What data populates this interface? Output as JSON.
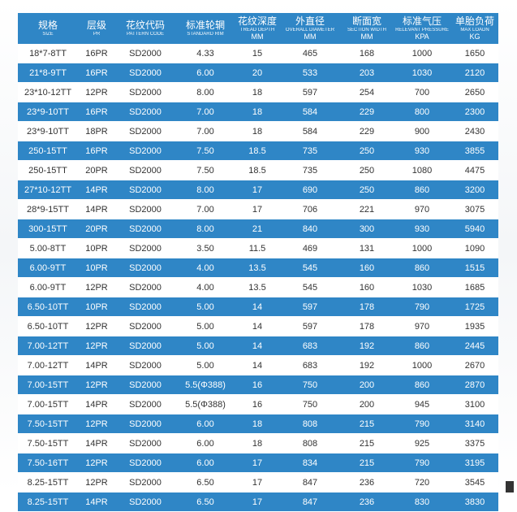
{
  "headers": [
    {
      "cn": "规格",
      "en": "SIZE",
      "unit": ""
    },
    {
      "cn": "层级",
      "en": "PR",
      "unit": ""
    },
    {
      "cn": "花纹代码",
      "en": "PATTERN CODE",
      "unit": ""
    },
    {
      "cn": "标准轮辋",
      "en": "STANDARD RIM",
      "unit": ""
    },
    {
      "cn": "花纹深度",
      "en": "TREAD DEPTH",
      "unit": "MM"
    },
    {
      "cn": "外直径",
      "en": "OVERALL DIAMETER",
      "unit": "MM"
    },
    {
      "cn": "断面宽",
      "en": "SECTION WIDTH",
      "unit": "MM"
    },
    {
      "cn": "标准气压",
      "en": "RELEVANT PRESSURE",
      "unit": "KPA"
    },
    {
      "cn": "单胎负荷",
      "en": "MAX LOADN",
      "unit": "KG"
    }
  ],
  "rows": [
    [
      "18*7-8TT",
      "16PR",
      "SD2000",
      "4.33",
      "15",
      "465",
      "168",
      "1000",
      "1650"
    ],
    [
      "21*8-9TT",
      "16PR",
      "SD2000",
      "6.00",
      "20",
      "533",
      "203",
      "1030",
      "2120"
    ],
    [
      "23*10-12TT",
      "12PR",
      "SD2000",
      "8.00",
      "18",
      "597",
      "254",
      "700",
      "2650"
    ],
    [
      "23*9-10TT",
      "16PR",
      "SD2000",
      "7.00",
      "18",
      "584",
      "229",
      "800",
      "2300"
    ],
    [
      "23*9-10TT",
      "18PR",
      "SD2000",
      "7.00",
      "18",
      "584",
      "229",
      "900",
      "2430"
    ],
    [
      "250-15TT",
      "16PR",
      "SD2000",
      "7.50",
      "18.5",
      "735",
      "250",
      "930",
      "3855"
    ],
    [
      "250-15TT",
      "20PR",
      "SD2000",
      "7.50",
      "18.5",
      "735",
      "250",
      "1080",
      "4475"
    ],
    [
      "27*10-12TT",
      "14PR",
      "SD2000",
      "8.00",
      "17",
      "690",
      "250",
      "860",
      "3200"
    ],
    [
      "28*9-15TT",
      "14PR",
      "SD2000",
      "7.00",
      "17",
      "706",
      "221",
      "970",
      "3075"
    ],
    [
      "300-15TT",
      "20PR",
      "SD2000",
      "8.00",
      "21",
      "840",
      "300",
      "930",
      "5940"
    ],
    [
      "5.00-8TT",
      "10PR",
      "SD2000",
      "3.50",
      "11.5",
      "469",
      "131",
      "1000",
      "1090"
    ],
    [
      "6.00-9TT",
      "10PR",
      "SD2000",
      "4.00",
      "13.5",
      "545",
      "160",
      "860",
      "1515"
    ],
    [
      "6.00-9TT",
      "12PR",
      "SD2000",
      "4.00",
      "13.5",
      "545",
      "160",
      "1030",
      "1685"
    ],
    [
      "6.50-10TT",
      "10PR",
      "SD2000",
      "5.00",
      "14",
      "597",
      "178",
      "790",
      "1725"
    ],
    [
      "6.50-10TT",
      "12PR",
      "SD2000",
      "5.00",
      "14",
      "597",
      "178",
      "970",
      "1935"
    ],
    [
      "7.00-12TT",
      "12PR",
      "SD2000",
      "5.00",
      "14",
      "683",
      "192",
      "860",
      "2445"
    ],
    [
      "7.00-12TT",
      "14PR",
      "SD2000",
      "5.00",
      "14",
      "683",
      "192",
      "1000",
      "2670"
    ],
    [
      "7.00-15TT",
      "12PR",
      "SD2000",
      "5.5(Φ388)",
      "16",
      "750",
      "200",
      "860",
      "2870"
    ],
    [
      "7.00-15TT",
      "14PR",
      "SD2000",
      "5.5(Φ388)",
      "16",
      "750",
      "200",
      "945",
      "3100"
    ],
    [
      "7.50-15TT",
      "12PR",
      "SD2000",
      "6.00",
      "18",
      "808",
      "215",
      "790",
      "3140"
    ],
    [
      "7.50-15TT",
      "14PR",
      "SD2000",
      "6.00",
      "18",
      "808",
      "215",
      "925",
      "3375"
    ],
    [
      "7.50-16TT",
      "12PR",
      "SD2000",
      "6.00",
      "17",
      "834",
      "215",
      "790",
      "3195"
    ],
    [
      "8.25-15TT",
      "12PR",
      "SD2000",
      "6.50",
      "17",
      "847",
      "236",
      "720",
      "3545"
    ],
    [
      "8.25-15TT",
      "14PR",
      "SD2000",
      "6.50",
      "17",
      "847",
      "236",
      "830",
      "3830"
    ]
  ],
  "colors": {
    "header_bg": "#2f86c6",
    "stripe_bg": "#2f86c6",
    "text": "#333333"
  }
}
